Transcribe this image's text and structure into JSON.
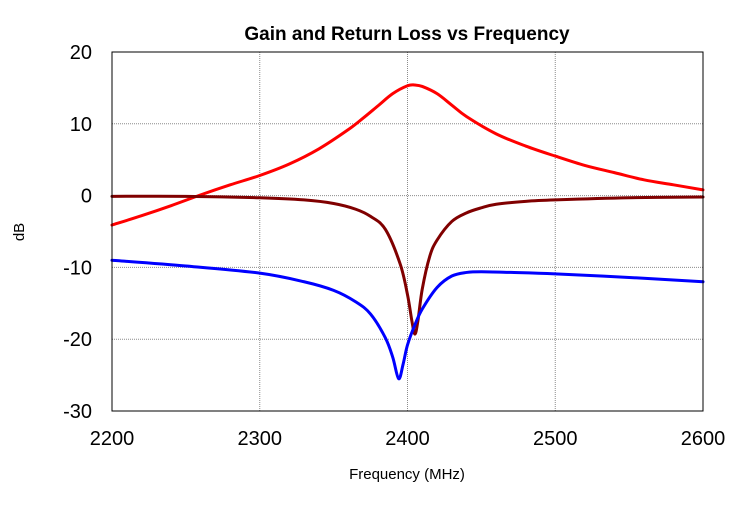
{
  "chart_data": {
    "type": "line",
    "title": "Gain and Return Loss vs Frequency",
    "xlabel": "Frequency (MHz)",
    "ylabel": "dB",
    "xlim": [
      2200,
      2600
    ],
    "ylim": [
      -30,
      20
    ],
    "xticks": [
      2200,
      2300,
      2400,
      2500,
      2600
    ],
    "yticks": [
      -30,
      -20,
      -10,
      0,
      10,
      20
    ],
    "grid": true,
    "legend": "none",
    "series": [
      {
        "color": "#ff0000",
        "x": [
          2200,
          2220,
          2240,
          2260,
          2280,
          2300,
          2320,
          2340,
          2360,
          2370,
          2380,
          2390,
          2400,
          2405,
          2410,
          2420,
          2430,
          2440,
          2460,
          2480,
          2500,
          2520,
          2540,
          2560,
          2580,
          2600
        ],
        "y": [
          -4.1,
          -2.8,
          -1.4,
          0.1,
          1.5,
          2.8,
          4.4,
          6.5,
          9.2,
          10.8,
          12.5,
          14.2,
          15.3,
          15.4,
          15.2,
          14.2,
          12.6,
          11.0,
          8.6,
          6.9,
          5.5,
          4.2,
          3.2,
          2.2,
          1.5,
          0.8
        ]
      },
      {
        "color": "#800000",
        "x": [
          2200,
          2250,
          2300,
          2330,
          2350,
          2365,
          2375,
          2385,
          2395,
          2400,
          2403,
          2405,
          2407,
          2410,
          2415,
          2420,
          2430,
          2440,
          2450,
          2460,
          2480,
          2500,
          2550,
          2600
        ],
        "y": [
          -0.1,
          -0.1,
          -0.3,
          -0.6,
          -1.1,
          -1.9,
          -2.9,
          -4.7,
          -9.5,
          -13.8,
          -17.5,
          -19.3,
          -17.5,
          -13.0,
          -8.5,
          -6.2,
          -3.6,
          -2.4,
          -1.7,
          -1.2,
          -0.8,
          -0.6,
          -0.3,
          -0.2
        ]
      },
      {
        "color": "#0000ff",
        "x": [
          2200,
          2250,
          2300,
          2330,
          2350,
          2365,
          2375,
          2385,
          2390,
          2394,
          2397,
          2400,
          2405,
          2410,
          2420,
          2430,
          2440,
          2450,
          2470,
          2500,
          2550,
          2600
        ],
        "y": [
          -9.0,
          -9.8,
          -10.8,
          -12.0,
          -13.2,
          -14.8,
          -16.5,
          -19.8,
          -22.5,
          -25.5,
          -23.5,
          -20.8,
          -18.0,
          -15.8,
          -12.8,
          -11.2,
          -10.7,
          -10.6,
          -10.7,
          -10.9,
          -11.4,
          -12.0
        ]
      }
    ]
  }
}
